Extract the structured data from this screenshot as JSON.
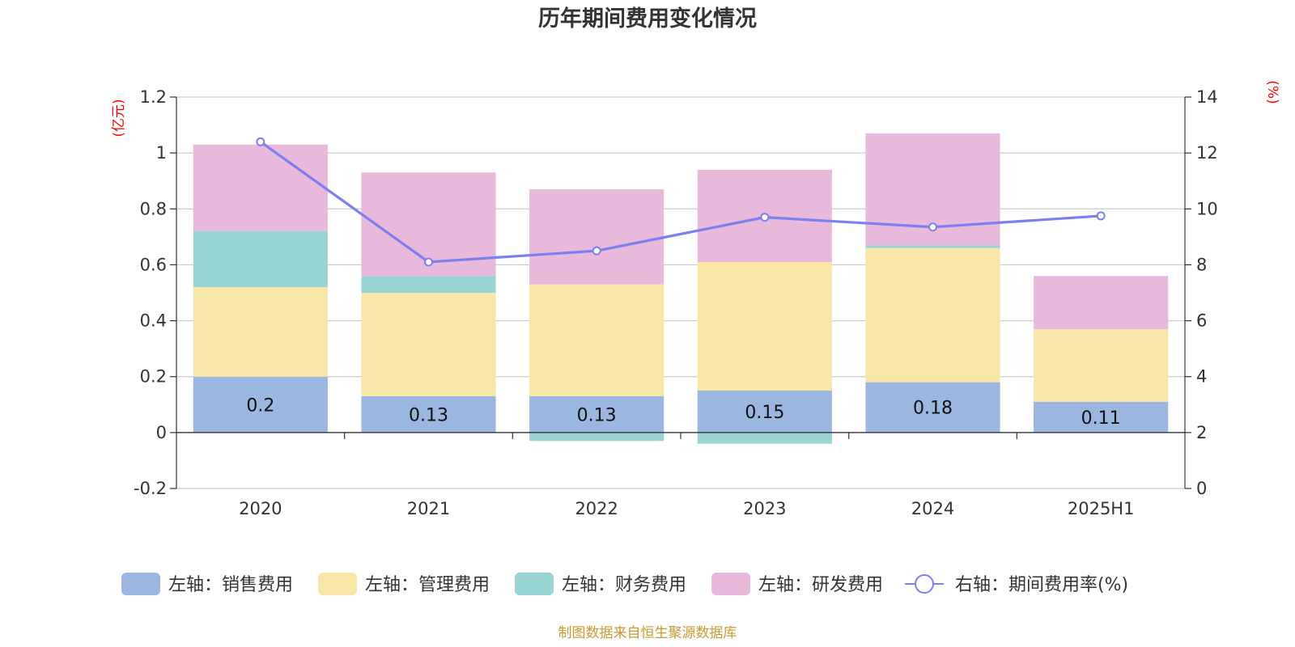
{
  "chart_data": {
    "type": "bar",
    "title": "历年期间费用变化情况",
    "categories": [
      "2020",
      "2021",
      "2022",
      "2023",
      "2024",
      "2025H1"
    ],
    "left_axis": {
      "unit": "(亿元)",
      "ylim": [
        -0.2,
        1.2
      ],
      "ticks": [
        "-0.2",
        "0",
        "0.2",
        "0.4",
        "0.6",
        "0.8",
        "1",
        "1.2"
      ]
    },
    "right_axis": {
      "unit": "(%)",
      "ylim": [
        0,
        14
      ],
      "ticks": [
        "0",
        "2",
        "4",
        "6",
        "8",
        "10",
        "12",
        "14"
      ]
    },
    "stacked": true,
    "series": [
      {
        "name": "左轴：销售费用",
        "type": "bar",
        "axis": "left",
        "color": "#9bb6e0",
        "values": [
          0.2,
          0.13,
          0.13,
          0.15,
          0.18,
          0.11
        ],
        "labels": [
          "0.2",
          "0.13",
          "0.13",
          "0.15",
          "0.18",
          "0.11"
        ]
      },
      {
        "name": "左轴：管理费用",
        "type": "bar",
        "axis": "left",
        "color": "#f8e6a8",
        "values": [
          0.32,
          0.37,
          0.4,
          0.46,
          0.48,
          0.26
        ]
      },
      {
        "name": "左轴：财务费用",
        "type": "bar",
        "axis": "left",
        "color": "#98d4d4",
        "values": [
          0.2,
          0.06,
          -0.03,
          -0.04,
          0.01,
          0.0
        ]
      },
      {
        "name": "左轴：研发费用",
        "type": "bar",
        "axis": "left",
        "color": "#e8b9da",
        "values": [
          0.31,
          0.37,
          0.34,
          0.33,
          0.4,
          0.19
        ]
      },
      {
        "name": "右轴：期间费用率(%)",
        "type": "line",
        "axis": "right",
        "color": "#7b7ff0",
        "values": [
          12.4,
          8.1,
          8.5,
          9.7,
          9.35,
          9.75
        ]
      }
    ],
    "grid": true,
    "legend_position": "bottom"
  },
  "footer": {
    "source": "制图数据来自恒生聚源数据库"
  }
}
